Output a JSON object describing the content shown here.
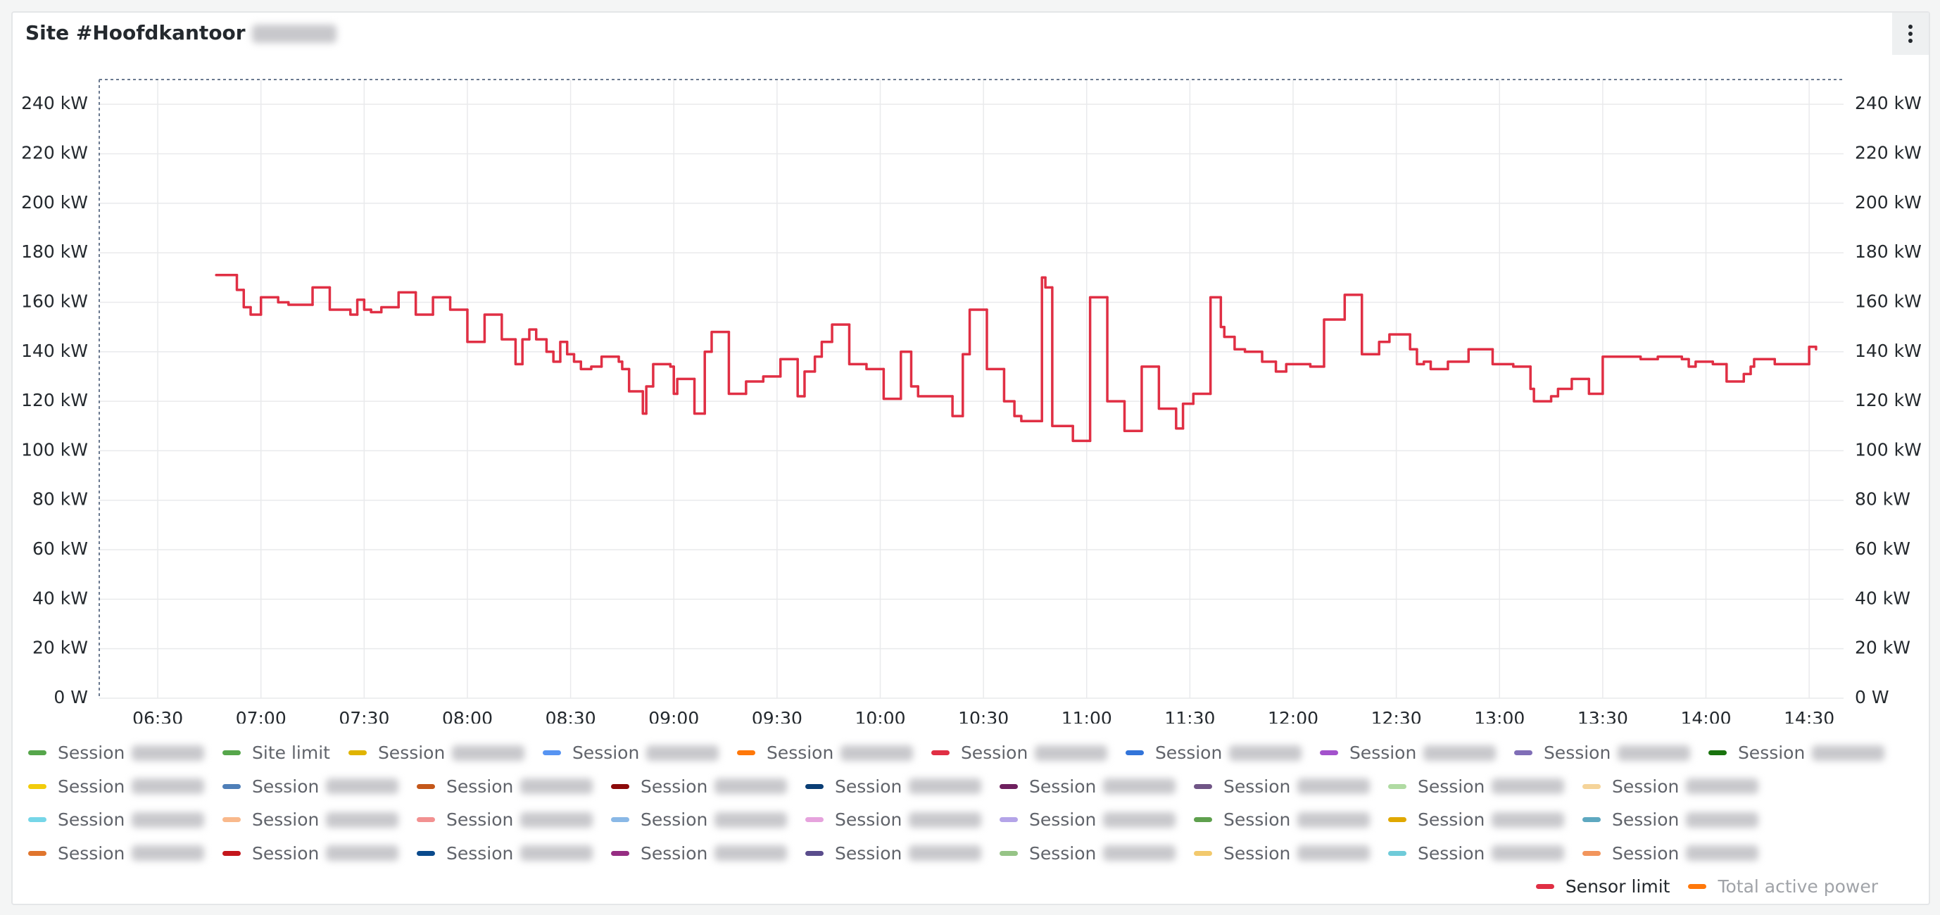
{
  "chart_data": {
    "type": "line",
    "title": "Site #Hoofdkantoor",
    "step": true,
    "xlim": [
      "06:13",
      "14:40"
    ],
    "xticks": [
      "06:30",
      "07:00",
      "07:30",
      "08:00",
      "08:30",
      "09:00",
      "09:30",
      "10:00",
      "10:30",
      "11:00",
      "11:30",
      "12:00",
      "12:30",
      "13:00",
      "13:30",
      "14:00",
      "14:30"
    ],
    "ylim": [
      0,
      250
    ],
    "yticks": [
      {
        "value": 0,
        "label": "0 W"
      },
      {
        "value": 20,
        "label": "20 kW"
      },
      {
        "value": 40,
        "label": "40 kW"
      },
      {
        "value": 60,
        "label": "60 kW"
      },
      {
        "value": 80,
        "label": "80 kW"
      },
      {
        "value": 100,
        "label": "100 kW"
      },
      {
        "value": 120,
        "label": "120 kW"
      },
      {
        "value": 140,
        "label": "140 kW"
      },
      {
        "value": 160,
        "label": "160 kW"
      },
      {
        "value": 180,
        "label": "180 kW"
      },
      {
        "value": 200,
        "label": "200 kW"
      },
      {
        "value": 220,
        "label": "220 kW"
      },
      {
        "value": 240,
        "label": "240 kW"
      }
    ],
    "grid": true,
    "x": [
      "06:47",
      "06:53",
      "06:55",
      "06:57",
      "07:00",
      "07:05",
      "07:08",
      "07:15",
      "07:20",
      "07:26",
      "07:28",
      "07:30",
      "07:32",
      "07:35",
      "07:40",
      "07:45",
      "07:50",
      "07:55",
      "08:00",
      "08:05",
      "08:10",
      "08:14",
      "08:16",
      "08:18",
      "08:20",
      "08:23",
      "08:25",
      "08:27",
      "08:29",
      "08:31",
      "08:33",
      "08:36",
      "08:39",
      "08:44",
      "08:45",
      "08:47",
      "08:51",
      "08:52",
      "08:54",
      "08:59",
      "09:00",
      "09:01",
      "09:06",
      "09:09",
      "09:11",
      "09:16",
      "09:21",
      "09:26",
      "09:31",
      "09:36",
      "09:38",
      "09:41",
      "09:43",
      "09:46",
      "09:51",
      "09:56",
      "10:01",
      "10:06",
      "10:09",
      "10:11",
      "10:21",
      "10:24",
      "10:26",
      "10:31",
      "10:36",
      "10:39",
      "10:41",
      "10:47",
      "10:48",
      "10:50",
      "10:56",
      "11:01",
      "11:06",
      "11:11",
      "11:16",
      "11:21",
      "11:26",
      "11:28",
      "11:31",
      "11:36",
      "11:39",
      "11:40",
      "11:43",
      "11:46",
      "11:51",
      "11:55",
      "11:58",
      "12:05",
      "12:09",
      "12:15",
      "12:20",
      "12:25",
      "12:28",
      "12:34",
      "12:36",
      "12:38",
      "12:40",
      "12:45",
      "12:51",
      "12:58",
      "13:04",
      "13:09",
      "13:10",
      "13:15",
      "13:17",
      "13:21",
      "13:26",
      "13:30",
      "13:41",
      "13:46",
      "13:53",
      "13:55",
      "13:57",
      "14:02",
      "14:06",
      "14:11",
      "14:13",
      "14:14",
      "14:20",
      "14:30",
      "14:32"
    ],
    "series": [
      {
        "name": "Session",
        "color": "#56a64b"
      },
      {
        "name": "Site limit",
        "color": "#56a64b"
      },
      {
        "name": "Session",
        "color": "#e0b400"
      },
      {
        "name": "Session",
        "color": "#5794f2"
      },
      {
        "name": "Session",
        "color": "#ff780a"
      },
      {
        "name": "Session",
        "color": "#e02f44"
      },
      {
        "name": "Session",
        "color": "#3274d9"
      },
      {
        "name": "Session",
        "color": "#a352cc"
      },
      {
        "name": "Session",
        "color": "#806eb7"
      },
      {
        "name": "Session",
        "color": "#19730e"
      },
      {
        "name": "Session",
        "color": "#f2cc0c"
      },
      {
        "name": "Session",
        "color": "#4f7fb8"
      },
      {
        "name": "Session",
        "color": "#c4571a"
      },
      {
        "name": "Session",
        "color": "#8c0a0a"
      },
      {
        "name": "Session",
        "color": "#0a3e75"
      },
      {
        "name": "Session",
        "color": "#6e1f5e"
      },
      {
        "name": "Session",
        "color": "#705586"
      },
      {
        "name": "Session",
        "color": "#b0dba3"
      },
      {
        "name": "Session",
        "color": "#f5d49a"
      },
      {
        "name": "Session",
        "color": "#76d6e8"
      },
      {
        "name": "Session",
        "color": "#f9b98c"
      },
      {
        "name": "Session",
        "color": "#f29191"
      },
      {
        "name": "Session",
        "color": "#8ab8e6"
      },
      {
        "name": "Session",
        "color": "#e6a3dd"
      },
      {
        "name": "Session",
        "color": "#b4a4e8"
      },
      {
        "name": "Session",
        "color": "#5fa04e"
      },
      {
        "name": "Session",
        "color": "#e0a800"
      },
      {
        "name": "Session",
        "color": "#5ea8c0"
      },
      {
        "name": "Session",
        "color": "#e0752d"
      },
      {
        "name": "Session",
        "color": "#c4161c"
      },
      {
        "name": "Session",
        "color": "#0a4a8c"
      },
      {
        "name": "Session",
        "color": "#962d82"
      },
      {
        "name": "Session",
        "color": "#5a4d8c"
      },
      {
        "name": "Session",
        "color": "#96c486"
      },
      {
        "name": "Session",
        "color": "#f2c96d"
      },
      {
        "name": "Session",
        "color": "#6fcbd9"
      },
      {
        "name": "Session",
        "color": "#f2955c"
      },
      {
        "name": "Sensor limit",
        "color": "#e02f44",
        "values": [
          171,
          165,
          158,
          155,
          162,
          160,
          159,
          166,
          157,
          155,
          161,
          157,
          156,
          158,
          164,
          155,
          162,
          157,
          144,
          155,
          145,
          135,
          145,
          149,
          145,
          140,
          136,
          144,
          139,
          136,
          133,
          134,
          138,
          136,
          133,
          124,
          115,
          126,
          135,
          134,
          123,
          129,
          115,
          140,
          148,
          123,
          128,
          130,
          137,
          122,
          132,
          138,
          144,
          151,
          135,
          133,
          121,
          140,
          126,
          122,
          114,
          139,
          157,
          133,
          120,
          114,
          112,
          170,
          166,
          110,
          104,
          162,
          120,
          108,
          134,
          117,
          109,
          119,
          123,
          162,
          150,
          146,
          141,
          140,
          136,
          132,
          135,
          134,
          153,
          163,
          139,
          144,
          147,
          141,
          135,
          136,
          133,
          136,
          141,
          135,
          134,
          125,
          120,
          122,
          125,
          129,
          123,
          138,
          137,
          138,
          137,
          134,
          136,
          135,
          128,
          131,
          134,
          137,
          135,
          142,
          141
        ]
      },
      {
        "name": "Total active power",
        "color": "#ff780a",
        "hidden": true
      }
    ]
  }
}
